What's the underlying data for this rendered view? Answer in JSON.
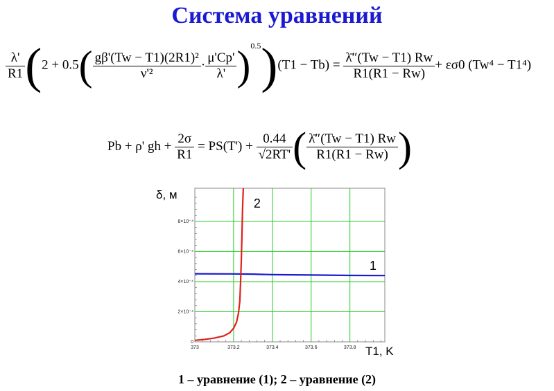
{
  "title": "Система уравнений",
  "caption": "1 – уравнение (1); 2 – уравнение (2)",
  "equation1": {
    "lhs_coef_num": "λ'",
    "lhs_coef_den": "R1",
    "term_two": "2 + 0.5",
    "inner_num": "gβ'(Tw − T1)(2R1)²",
    "inner_den": "ν'²",
    "dot": "·",
    "inner2_num": "μ'Cp'",
    "inner2_den": "λ'",
    "power": "0.5",
    "lhs_tail": "(T1 − Tb) =",
    "rhs_num": "λ̄″(Tw − T1) Rw",
    "rhs_den": "R1(R1 − Rw)",
    "rhs_tail": "+ εσ0 (Tw⁴ − T1⁴)"
  },
  "equation2": {
    "lhs": "Pb + ρ' gh +",
    "frac1_num": "2σ",
    "frac1_den": "R1",
    "mid": "= PS(T') +",
    "frac2_num": "0.44",
    "frac2_den": "√2RT'",
    "frac3_num": "λ̄″(Tw − T1) Rw",
    "frac3_den": "R1(R1 − Rw)"
  },
  "chart_data": {
    "type": "line",
    "ylabel": "δ, м",
    "xlabel": "T1, K",
    "xlim": [
      373,
      373.98
    ],
    "ylim": [
      0,
      0.00102
    ],
    "x_ticks": [
      "373",
      "373.2",
      "373.4",
      "373.6",
      "373.8"
    ],
    "x_tick_values": [
      373,
      373.2,
      373.4,
      373.6,
      373.8
    ],
    "y_ticks": [
      "0",
      "2×10⁻⁴",
      "4×10⁻⁴",
      "6×10⁻⁴",
      "8×10⁻⁴"
    ],
    "y_tick_values": [
      0,
      0.0002,
      0.0004,
      0.0006,
      0.0008
    ],
    "grid": true,
    "series": [
      {
        "name": "1",
        "color": "#1a1ad0",
        "x": [
          373.0,
          373.2,
          373.3,
          373.4,
          373.6,
          373.8,
          373.98
        ],
        "y": [
          0.000452,
          0.000451,
          0.00045,
          0.000446,
          0.000444,
          0.000441,
          0.00044
        ]
      },
      {
        "name": "2",
        "color": "#e0201a",
        "x": [
          373.0,
          373.05,
          373.1,
          373.15,
          373.18,
          373.2,
          373.215,
          373.225,
          373.232,
          373.236,
          373.24,
          373.243,
          373.246,
          373.25
        ],
        "y": [
          1e-05,
          1.6e-05,
          2.5e-05,
          4e-05,
          6e-05,
          9e-05,
          0.00013,
          0.00019,
          0.00027,
          0.0004,
          0.00055,
          0.0007,
          0.00088,
          0.00102
        ]
      }
    ]
  }
}
